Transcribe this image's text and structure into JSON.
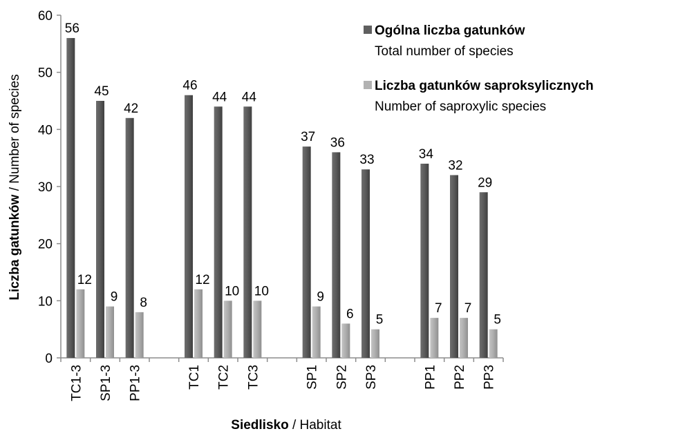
{
  "chart_data": {
    "type": "bar",
    "categories": [
      "TC1-3",
      "SP1-3",
      "PP1-3",
      "TC1",
      "TC2",
      "TC3",
      "SP1",
      "SP2",
      "SP3",
      "PP1",
      "PP2",
      "PP3"
    ],
    "groups": [
      [
        0,
        1,
        2
      ],
      [
        3,
        4,
        5
      ],
      [
        6,
        7,
        8
      ],
      [
        9,
        10,
        11
      ]
    ],
    "series": [
      {
        "name_bold": "Ogólna liczba gatunków",
        "name_sub": "Total number of species",
        "color": "#5f5f5f",
        "values": [
          56,
          45,
          42,
          46,
          44,
          44,
          37,
          36,
          33,
          34,
          32,
          29
        ]
      },
      {
        "name_bold": "Liczba gatunków saproksylicznych",
        "name_sub": "Number of saproxylic species",
        "color": "#b2b2b2",
        "values": [
          12,
          9,
          8,
          12,
          10,
          10,
          9,
          6,
          5,
          7,
          7,
          5
        ]
      }
    ],
    "xlabel_bold": "Siedlisko",
    "xlabel_rest": " / Habitat",
    "ylabel_bold": "Liczba gatunków",
    "ylabel_rest": " / Number of species",
    "ylim": [
      0,
      60
    ],
    "yticks": [
      0,
      10,
      20,
      30,
      40,
      50,
      60
    ],
    "grid": false,
    "legend_position": "top-right"
  }
}
